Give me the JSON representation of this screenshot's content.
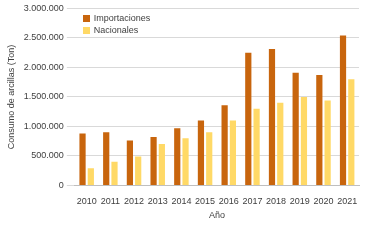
{
  "chart_data": {
    "type": "bar",
    "x_label": "Año",
    "y_label": "Consumo de arcillas (Ton)",
    "categories": [
      "2010",
      "2011",
      "2012",
      "2013",
      "2014",
      "2015",
      "2016",
      "2017",
      "2018",
      "2019",
      "2020",
      "2021"
    ],
    "series": [
      {
        "name": "Importaciones",
        "color": "#c8650d",
        "values": [
          880000,
          900000,
          760000,
          820000,
          970000,
          1100000,
          1360000,
          2250000,
          2310000,
          1910000,
          1870000,
          2540000
        ]
      },
      {
        "name": "Nacionales",
        "color": "#ffd966",
        "values": [
          290000,
          400000,
          490000,
          700000,
          800000,
          900000,
          1100000,
          1300000,
          1400000,
          1500000,
          1440000,
          1800000
        ]
      }
    ],
    "ylim": [
      0,
      3000000
    ],
    "yticks": [
      0,
      {
        "value": 500000,
        "label": "500.000"
      },
      {
        "value": 1000000,
        "label": "1.000.000"
      },
      {
        "value": 1500000,
        "label": "1.500.000"
      },
      {
        "value": 2000000,
        "label": "2.000.000"
      },
      {
        "value": 2500000,
        "label": "2.500.000"
      },
      {
        "value": 3000000,
        "label": "3.000.000"
      }
    ],
    "grid": true,
    "legend": "upper left"
  }
}
